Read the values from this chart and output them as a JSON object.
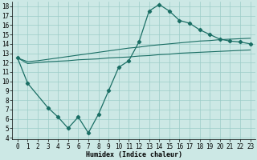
{
  "xlabel": "Humidex (Indice chaleur)",
  "background_color": "#cce8e5",
  "grid_color": "#9cccc8",
  "line_color": "#1a6e64",
  "xlim": [
    -0.5,
    23.5
  ],
  "ylim": [
    3.8,
    18.5
  ],
  "xticks": [
    0,
    1,
    2,
    3,
    4,
    5,
    6,
    7,
    8,
    9,
    10,
    11,
    12,
    13,
    14,
    15,
    16,
    17,
    18,
    19,
    20,
    21,
    22,
    23
  ],
  "yticks": [
    4,
    5,
    6,
    7,
    8,
    9,
    10,
    11,
    12,
    13,
    14,
    15,
    16,
    17,
    18
  ],
  "line1_x": [
    0,
    1,
    2,
    3,
    4,
    5,
    6,
    7,
    8,
    9,
    10,
    11,
    12,
    13,
    14,
    15,
    16,
    17,
    18,
    19,
    20,
    21,
    22,
    23
  ],
  "line1_y": [
    12.5,
    12.1,
    12.2,
    12.35,
    12.5,
    12.65,
    12.8,
    12.95,
    13.1,
    13.25,
    13.4,
    13.55,
    13.65,
    13.8,
    13.9,
    14.0,
    14.1,
    14.2,
    14.3,
    14.35,
    14.45,
    14.5,
    14.55,
    14.6
  ],
  "line2_x": [
    0,
    1,
    2,
    3,
    4,
    5,
    6,
    7,
    8,
    9,
    10,
    11,
    12,
    13,
    14,
    15,
    16,
    17,
    18,
    19,
    20,
    21,
    22,
    23
  ],
  "line2_y": [
    12.5,
    11.9,
    12.0,
    12.1,
    12.15,
    12.2,
    12.3,
    12.35,
    12.4,
    12.5,
    12.55,
    12.6,
    12.7,
    12.75,
    12.85,
    12.9,
    13.0,
    13.05,
    13.1,
    13.15,
    13.2,
    13.25,
    13.3,
    13.35
  ],
  "line3_x": [
    0,
    1,
    3,
    4,
    5,
    6,
    7,
    8,
    9,
    10,
    11,
    12,
    13,
    14,
    15,
    16,
    17,
    18,
    19,
    20,
    21,
    22,
    23
  ],
  "line3_y": [
    12.5,
    9.8,
    7.2,
    6.2,
    5.0,
    6.2,
    4.5,
    6.5,
    9.0,
    11.5,
    12.2,
    14.2,
    17.5,
    18.2,
    17.5,
    16.5,
    16.2,
    15.5,
    15.0,
    14.5,
    14.3,
    14.2,
    14.0
  ],
  "fontsize_label": 6,
  "fontsize_tick": 5.5
}
